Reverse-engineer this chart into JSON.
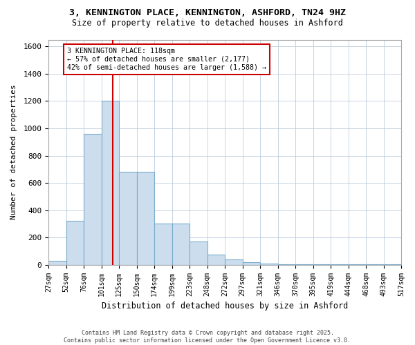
{
  "title1": "3, KENNINGTON PLACE, KENNINGTON, ASHFORD, TN24 9HZ",
  "title2": "Size of property relative to detached houses in Ashford",
  "xlabel": "Distribution of detached houses by size in Ashford",
  "ylabel": "Number of detached properties",
  "bar_color": "#ccdded",
  "bar_edge_color": "#7aabcc",
  "bin_labels": [
    "27sqm",
    "52sqm",
    "76sqm",
    "101sqm",
    "125sqm",
    "150sqm",
    "174sqm",
    "199sqm",
    "223sqm",
    "248sqm",
    "272sqm",
    "297sqm",
    "321sqm",
    "346sqm",
    "370sqm",
    "395sqm",
    "419sqm",
    "444sqm",
    "468sqm",
    "493sqm",
    "517sqm"
  ],
  "bar_heights": [
    30,
    320,
    960,
    1200,
    680,
    680,
    300,
    300,
    170,
    75,
    40,
    20,
    10,
    5,
    5,
    2,
    2,
    2,
    2,
    2
  ],
  "ylim": [
    0,
    1650
  ],
  "yticks": [
    0,
    200,
    400,
    600,
    800,
    1000,
    1200,
    1400,
    1600
  ],
  "property_line_x": 118,
  "annotation_text": "3 KENNINGTON PLACE: 118sqm\n← 57% of detached houses are smaller (2,177)\n42% of semi-detached houses are larger (1,588) →",
  "annotation_box_color": "#ffffff",
  "annotation_edge_color": "#cc0000",
  "vline_color": "#cc0000",
  "footer1": "Contains HM Land Registry data © Crown copyright and database right 2025.",
  "footer2": "Contains public sector information licensed under the Open Government Licence v3.0.",
  "background_color": "#ffffff",
  "plot_background": "#ffffff",
  "grid_color": "#bbccdd"
}
